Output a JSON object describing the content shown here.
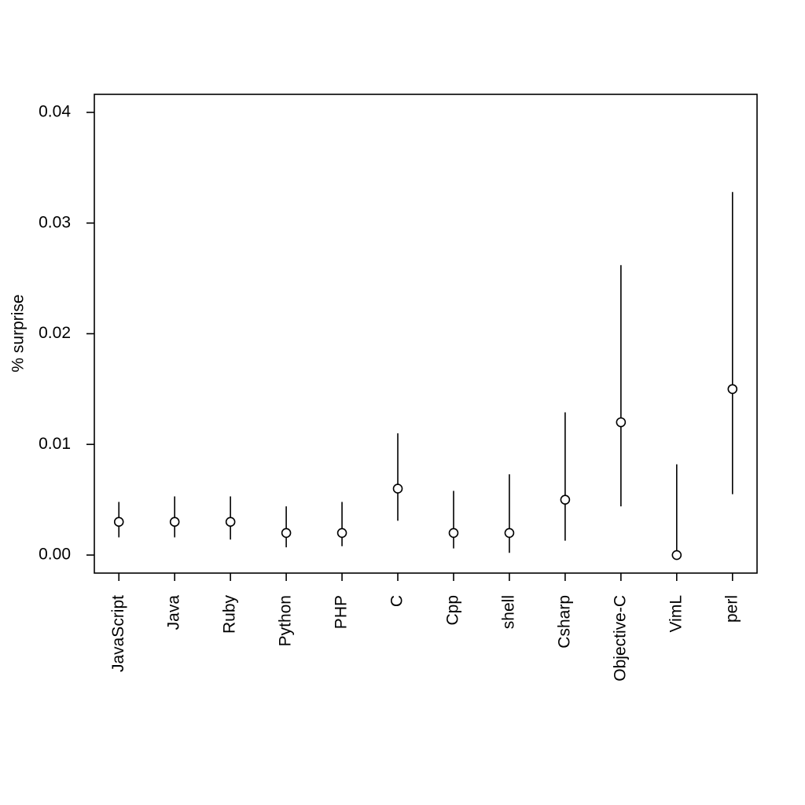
{
  "chart_data": {
    "type": "errorbar",
    "ylabel": "% surprise",
    "categories": [
      "JavaScript",
      "Java",
      "Ruby",
      "Python",
      "PHP",
      "C",
      "Cpp",
      "shell",
      "Csharp",
      "Objective-C",
      "VimL",
      "perl"
    ],
    "values": [
      0.003,
      0.003,
      0.003,
      0.002,
      0.002,
      0.006,
      0.002,
      0.002,
      0.005,
      0.012,
      0.0,
      0.015
    ],
    "lower": [
      0.0016,
      0.0016,
      0.0014,
      0.0007,
      0.0008,
      0.0031,
      0.0006,
      0.0002,
      0.0013,
      0.0044,
      0.0,
      0.0055
    ],
    "upper": [
      0.0048,
      0.0053,
      0.0053,
      0.0044,
      0.0048,
      0.011,
      0.0058,
      0.0073,
      0.0129,
      0.0262,
      0.0082,
      0.0328
    ],
    "color": "#000000",
    "ylim": [
      -0.00163,
      0.04163
    ],
    "yticks": [
      {
        "value": 0,
        "label": "0.00"
      },
      0.01,
      0.02,
      0.03,
      0.04
    ]
  }
}
